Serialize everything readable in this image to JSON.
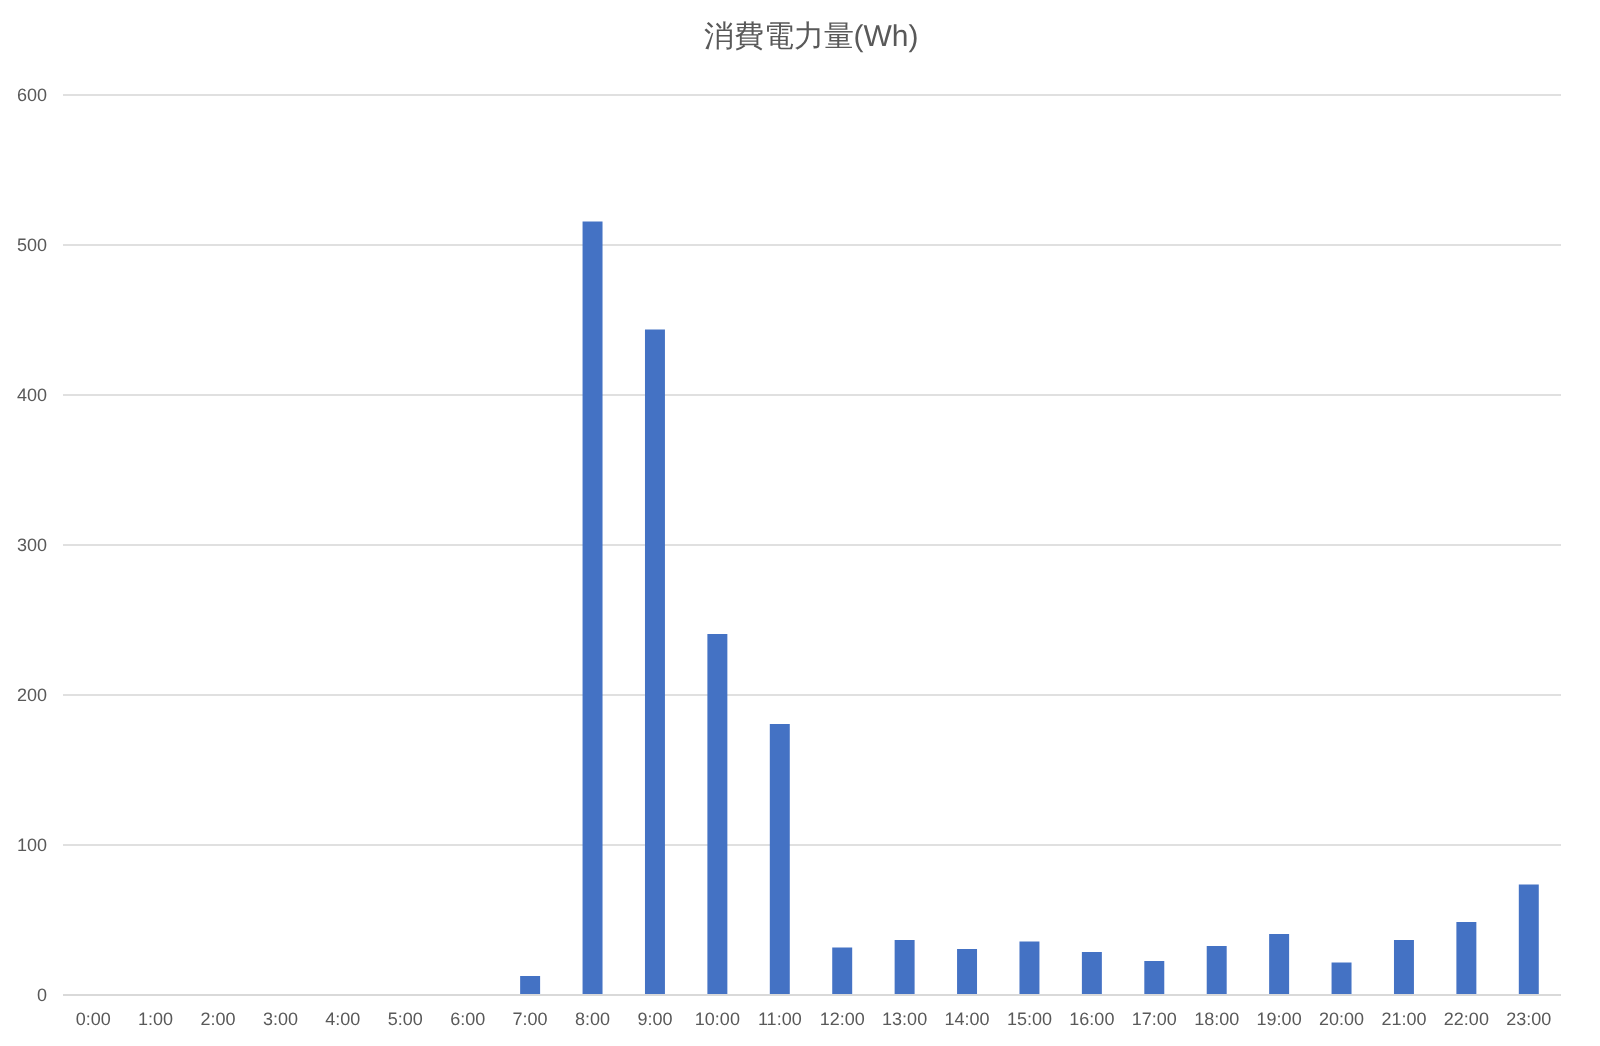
{
  "chart_data": {
    "type": "bar",
    "title": "消費電力量(Wh)",
    "categories": [
      "0:00",
      "1:00",
      "2:00",
      "3:00",
      "4:00",
      "5:00",
      "6:00",
      "7:00",
      "8:00",
      "9:00",
      "10:00",
      "11:00",
      "12:00",
      "13:00",
      "14:00",
      "15:00",
      "16:00",
      "17:00",
      "18:00",
      "19:00",
      "20:00",
      "21:00",
      "22:00",
      "23:00"
    ],
    "values": [
      0,
      0,
      0,
      0,
      0,
      0,
      0,
      12,
      515,
      443,
      240,
      180,
      31,
      36,
      30,
      35,
      28,
      22,
      32,
      40,
      21,
      36,
      48,
      73
    ],
    "color": "#4472c4",
    "ylim": [
      0,
      600
    ],
    "yticks": [
      0,
      100,
      200,
      300,
      400,
      500,
      600
    ],
    "grid": "y"
  }
}
